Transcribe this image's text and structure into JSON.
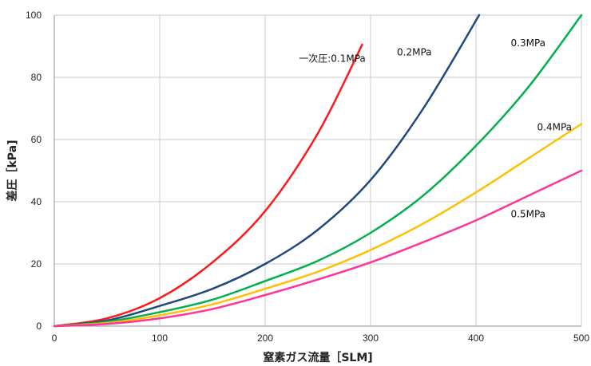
{
  "chart_data": {
    "type": "line",
    "title": "",
    "xlabel": "窒素ガス流量［SLM]",
    "ylabel": "差圧［kPa]",
    "xlim": [
      0,
      500
    ],
    "ylim": [
      0,
      100
    ],
    "xticks": [
      "0",
      "100",
      "200",
      "300",
      "400",
      "500"
    ],
    "yticks": [
      "0",
      "20",
      "40",
      "60",
      "80",
      "100"
    ],
    "grid": true,
    "legend": "none",
    "series": [
      {
        "name": "一次圧:0.1MPa",
        "color": "#ff1a1a",
        "x": [
          0,
          50,
          100,
          150,
          200,
          250,
          292
        ],
        "y": [
          0,
          2.5,
          9,
          20.5,
          37,
          62,
          90.5
        ]
      },
      {
        "name": "0.2MPa",
        "color": "#1f497d",
        "x": [
          0,
          50,
          100,
          150,
          200,
          250,
          300,
          350,
          403
        ],
        "y": [
          0,
          1.8,
          6.5,
          12,
          20,
          31,
          47,
          70,
          100
        ]
      },
      {
        "name": "0.3MPa",
        "color": "#00b050",
        "x": [
          0,
          50,
          100,
          150,
          200,
          250,
          300,
          350,
          400,
          450,
          500
        ],
        "y": [
          0,
          1.4,
          4.5,
          8.5,
          14.5,
          21,
          30,
          42,
          58,
          77,
          100
        ]
      },
      {
        "name": "0.4MPa",
        "color": "#ffc000",
        "x": [
          0,
          50,
          100,
          150,
          200,
          250,
          300,
          350,
          400,
          450,
          500
        ],
        "y": [
          0,
          1,
          3.5,
          7,
          12,
          17.5,
          24.5,
          33,
          43,
          54,
          65
        ]
      },
      {
        "name": "0.5MPa",
        "color": "#ff3399",
        "x": [
          0,
          50,
          100,
          150,
          200,
          250,
          300,
          350,
          400,
          450,
          500
        ],
        "y": [
          0,
          0.7,
          2.5,
          5.5,
          10,
          15,
          20.5,
          27,
          34,
          42,
          50
        ]
      }
    ],
    "series_labels": [
      {
        "text": "一次圧:0.1MPa",
        "x": 232,
        "y": 85
      },
      {
        "text": "0.2MPa",
        "x": 325,
        "y": 87
      },
      {
        "text": "0.3MPa",
        "x": 433,
        "y": 90
      },
      {
        "text": "0.4MPa",
        "x": 458,
        "y": 63
      },
      {
        "text": "0.5MPa",
        "x": 433,
        "y": 35
      }
    ]
  }
}
